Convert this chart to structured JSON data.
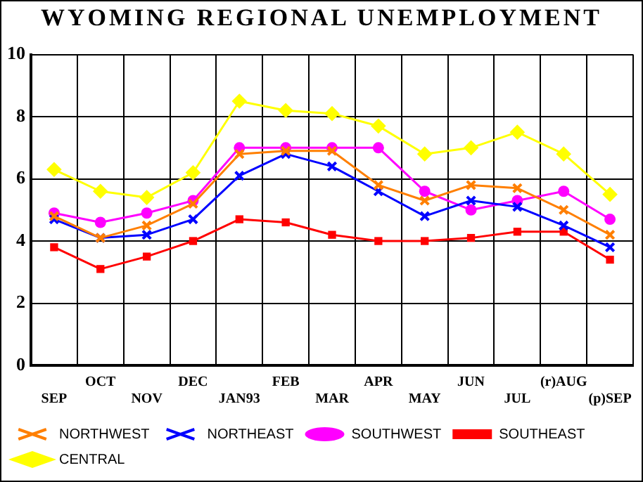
{
  "chart_data": {
    "type": "line",
    "title": "WYOMING REGIONAL UNEMPLOYMENT",
    "categories": [
      "SEP",
      "OCT",
      "NOV",
      "DEC",
      "JAN93",
      "FEB",
      "MAR",
      "APR",
      "MAY",
      "JUN",
      "JUL",
      "(r)AUG",
      "(p)SEP"
    ],
    "ylim": [
      0,
      10
    ],
    "yticks": [
      0,
      2,
      4,
      6,
      8,
      10
    ],
    "grid": true,
    "legend": "bottom",
    "series": [
      {
        "name": "NORTHWEST",
        "color": "#ff7f00",
        "marker": "cross",
        "values": [
          4.8,
          4.1,
          4.5,
          5.2,
          6.8,
          6.9,
          6.9,
          5.8,
          5.3,
          5.8,
          5.7,
          5.0,
          4.2
        ]
      },
      {
        "name": "NORTHEAST",
        "color": "#0000ff",
        "marker": "cross",
        "values": [
          4.7,
          4.1,
          4.2,
          4.7,
          6.1,
          6.8,
          6.4,
          5.6,
          4.8,
          5.3,
          5.1,
          4.5,
          3.8
        ]
      },
      {
        "name": "SOUTHWEST",
        "color": "#ff00ff",
        "marker": "circle",
        "values": [
          4.9,
          4.6,
          4.9,
          5.3,
          7.0,
          7.0,
          7.0,
          7.0,
          5.6,
          5.0,
          5.3,
          5.6,
          4.7
        ]
      },
      {
        "name": "SOUTHEAST",
        "color": "#ff0000",
        "marker": "square",
        "values": [
          3.8,
          3.1,
          3.5,
          4.0,
          4.7,
          4.6,
          4.2,
          4.0,
          4.0,
          4.1,
          4.3,
          4.3,
          3.4
        ]
      },
      {
        "name": "CENTRAL",
        "color": "#ffff00",
        "marker": "diamond",
        "values": [
          6.3,
          5.6,
          5.4,
          6.2,
          8.5,
          8.2,
          8.1,
          7.7,
          6.8,
          7.0,
          7.5,
          6.8,
          5.5
        ]
      }
    ]
  }
}
